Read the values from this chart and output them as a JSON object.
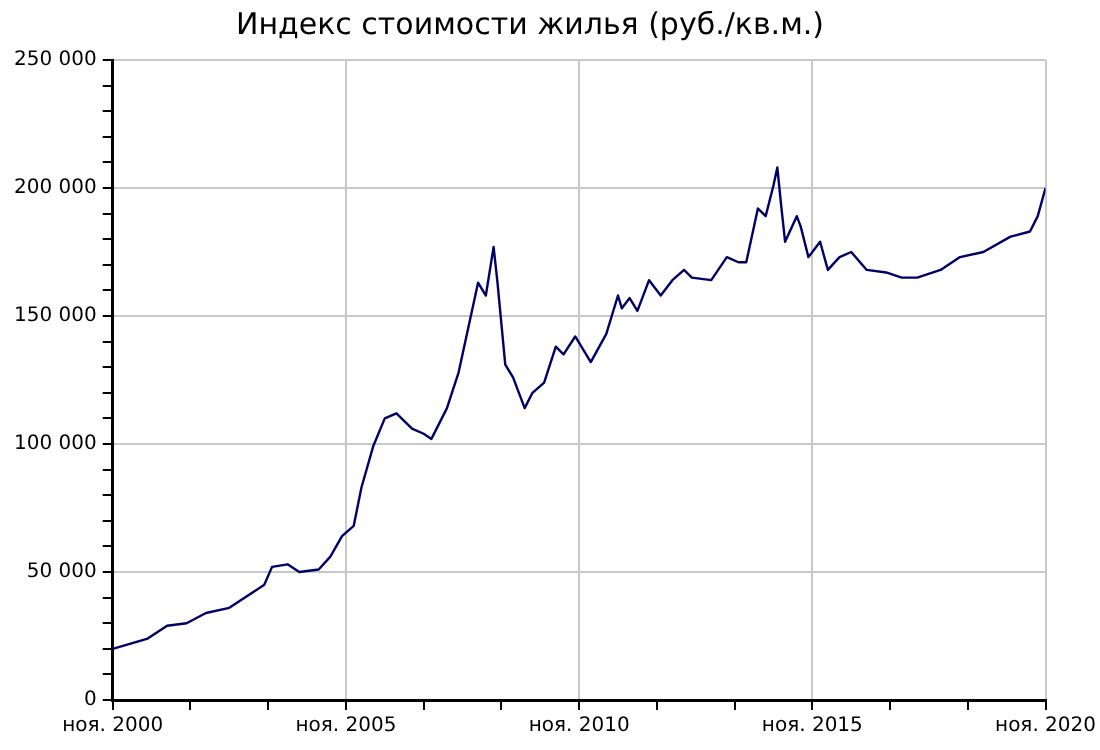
{
  "chart_data": {
    "type": "line",
    "title": "Индекс стоимости жилья (руб./кв.м.)",
    "x": [
      "2000-11",
      "2001-08",
      "2002-01",
      "2002-06",
      "2002-11",
      "2003-05",
      "2004-02",
      "2004-04",
      "2004-08",
      "2004-11",
      "2005-04",
      "2005-07",
      "2005-10",
      "2006-01",
      "2006-03",
      "2006-06",
      "2006-09",
      "2006-12",
      "2007-04",
      "2007-07",
      "2007-09",
      "2008-01",
      "2008-04",
      "2008-06",
      "2008-09",
      "2008-11",
      "2009-01",
      "2009-02",
      "2009-04",
      "2009-06",
      "2009-09",
      "2009-11",
      "2010-02",
      "2010-05",
      "2010-07",
      "2010-10",
      "2011-02",
      "2011-06",
      "2011-09",
      "2011-10",
      "2011-12",
      "2012-02",
      "2012-05",
      "2012-08",
      "2012-11",
      "2013-02",
      "2013-04",
      "2013-09",
      "2014-01",
      "2014-04",
      "2014-06",
      "2014-09",
      "2014-11",
      "2015-01",
      "2015-02",
      "2015-03",
      "2015-04",
      "2015-07",
      "2015-08",
      "2015-10",
      "2016-01",
      "2016-03",
      "2016-06",
      "2016-09",
      "2017-01",
      "2017-06",
      "2017-10",
      "2018-02",
      "2018-08",
      "2019-01",
      "2019-07",
      "2020-02",
      "2020-07",
      "2020-09",
      "2020-11"
    ],
    "series": [
      {
        "color": "#000066",
        "values": [
          20000,
          24000,
          29000,
          30000,
          34000,
          36000,
          45000,
          52000,
          53000,
          50000,
          51000,
          56000,
          64000,
          68000,
          83000,
          99000,
          110000,
          112000,
          106000,
          104000,
          102000,
          114000,
          128000,
          142000,
          163000,
          158000,
          177000,
          163000,
          131000,
          126000,
          114000,
          120000,
          124000,
          138000,
          135000,
          142000,
          132000,
          143000,
          158000,
          153000,
          157000,
          152000,
          164000,
          158000,
          164000,
          168000,
          165000,
          164000,
          173000,
          171000,
          171000,
          192000,
          189000,
          201000,
          208000,
          193000,
          179000,
          189000,
          185000,
          173000,
          179000,
          168000,
          173000,
          175000,
          168000,
          167000,
          165000,
          165000,
          168000,
          173000,
          175000,
          181000,
          183000,
          189000,
          200000
        ]
      }
    ],
    "xlim": [
      "2000-11",
      "2020-11"
    ],
    "xticks": [
      {
        "value": "2000-11",
        "label": "ноя. 2000"
      },
      {
        "value": "2002-07",
        "label": null
      },
      {
        "value": "2004-03",
        "label": null
      },
      {
        "value": "2005-11",
        "label": "ноя. 2005"
      },
      {
        "value": "2007-07",
        "label": null
      },
      {
        "value": "2009-03",
        "label": null
      },
      {
        "value": "2010-11",
        "label": "ноя. 2010"
      },
      {
        "value": "2012-07",
        "label": null
      },
      {
        "value": "2014-03",
        "label": null
      },
      {
        "value": "2015-11",
        "label": "ноя. 2015"
      },
      {
        "value": "2017-07",
        "label": null
      },
      {
        "value": "2019-03",
        "label": null
      },
      {
        "value": "2020-11",
        "label": "ноя. 2020"
      }
    ],
    "ylim": [
      0,
      250000
    ],
    "yticks": [
      {
        "value": 0,
        "label": "0"
      },
      {
        "value": 10000,
        "label": null
      },
      {
        "value": 20000,
        "label": null
      },
      {
        "value": 30000,
        "label": null
      },
      {
        "value": 40000,
        "label": null
      },
      {
        "value": 50000,
        "label": "50 000"
      },
      {
        "value": 60000,
        "label": null
      },
      {
        "value": 70000,
        "label": null
      },
      {
        "value": 80000,
        "label": null
      },
      {
        "value": 90000,
        "label": null
      },
      {
        "value": 100000,
        "label": "100 000"
      },
      {
        "value": 110000,
        "label": null
      },
      {
        "value": 120000,
        "label": null
      },
      {
        "value": 130000,
        "label": null
      },
      {
        "value": 140000,
        "label": null
      },
      {
        "value": 150000,
        "label": "150 000"
      },
      {
        "value": 160000,
        "label": null
      },
      {
        "value": 170000,
        "label": null
      },
      {
        "value": 180000,
        "label": null
      },
      {
        "value": 190000,
        "label": null
      },
      {
        "value": 200000,
        "label": "200 000"
      },
      {
        "value": 210000,
        "label": null
      },
      {
        "value": 220000,
        "label": null
      },
      {
        "value": 230000,
        "label": null
      },
      {
        "value": 240000,
        "label": null
      },
      {
        "value": 250000,
        "label": "250 000"
      }
    ],
    "grid": true,
    "legend": false,
    "marker": "none",
    "line_style": "solid"
  }
}
